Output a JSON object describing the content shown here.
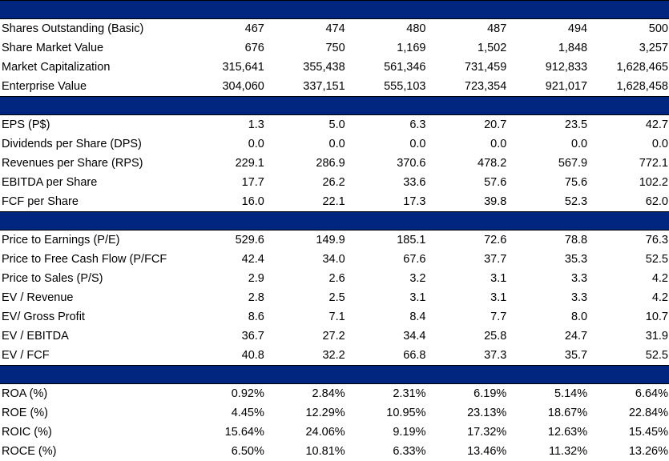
{
  "sections": [
    {
      "rows": [
        {
          "label": "Shares Outstanding (Basic)",
          "values": [
            "467",
            "474",
            "480",
            "487",
            "494",
            "500"
          ]
        },
        {
          "label": "Share Market Value",
          "values": [
            "676",
            "750",
            "1,169",
            "1,502",
            "1,848",
            "3,257"
          ]
        },
        {
          "label": "Market Capitalization",
          "values": [
            "315,641",
            "355,438",
            "561,346",
            "731,459",
            "912,833",
            "1,628,465"
          ]
        },
        {
          "label": "Enterprise Value",
          "values": [
            "304,060",
            "337,151",
            "555,103",
            "723,354",
            "921,017",
            "1,628,458"
          ]
        }
      ]
    },
    {
      "rows": [
        {
          "label": "EPS (P$)",
          "values": [
            "1.3",
            "5.0",
            "6.3",
            "20.7",
            "23.5",
            "42.7"
          ]
        },
        {
          "label": "Dividends per Share (DPS)",
          "values": [
            "0.0",
            "0.0",
            "0.0",
            "0.0",
            "0.0",
            "0.0"
          ]
        },
        {
          "label": "Revenues per Share (RPS)",
          "values": [
            "229.1",
            "286.9",
            "370.6",
            "478.2",
            "567.9",
            "772.1"
          ]
        },
        {
          "label": "EBITDA per Share",
          "values": [
            "17.7",
            "26.2",
            "33.6",
            "57.6",
            "75.6",
            "102.2"
          ]
        },
        {
          "label": "FCF per Share",
          "values": [
            "16.0",
            "22.1",
            "17.3",
            "39.8",
            "52.3",
            "62.0"
          ]
        }
      ]
    },
    {
      "rows": [
        {
          "label": "Price to Earnings (P/E)",
          "values": [
            "529.6",
            "149.9",
            "185.1",
            "72.6",
            "78.8",
            "76.3"
          ]
        },
        {
          "label": "Price to Free Cash Flow (P/FCF",
          "values": [
            "42.4",
            "34.0",
            "67.6",
            "37.7",
            "35.3",
            "52.5"
          ]
        },
        {
          "label": "Price to Sales (P/S)",
          "values": [
            "2.9",
            "2.6",
            "3.2",
            "3.1",
            "3.3",
            "4.2"
          ]
        },
        {
          "label": "EV / Revenue",
          "values": [
            "2.8",
            "2.5",
            "3.1",
            "3.1",
            "3.3",
            "4.2"
          ]
        },
        {
          "label": "EV/ Gross Profit",
          "values": [
            "8.6",
            "7.1",
            "8.4",
            "7.7",
            "8.0",
            "10.7"
          ]
        },
        {
          "label": "EV / EBITDA",
          "values": [
            "36.7",
            "27.2",
            "34.4",
            "25.8",
            "24.7",
            "31.9"
          ]
        },
        {
          "label": "EV / FCF",
          "values": [
            "40.8",
            "32.2",
            "66.8",
            "37.3",
            "35.7",
            "52.5"
          ]
        }
      ]
    },
    {
      "rows": [
        {
          "label": "ROA (%)",
          "values": [
            "0.92%",
            "2.84%",
            "2.31%",
            "6.19%",
            "5.14%",
            "6.64%"
          ]
        },
        {
          "label": "ROE (%)",
          "values": [
            "4.45%",
            "12.29%",
            "10.95%",
            "23.13%",
            "18.67%",
            "22.84%"
          ]
        },
        {
          "label": "ROIC (%)",
          "values": [
            "15.64%",
            "24.06%",
            "9.19%",
            "17.32%",
            "12.63%",
            "15.45%"
          ]
        },
        {
          "label": "ROCE (%)",
          "values": [
            "6.50%",
            "10.81%",
            "6.33%",
            "13.46%",
            "11.32%",
            "13.26%"
          ]
        }
      ]
    }
  ],
  "colors": {
    "band": "#002680"
  }
}
